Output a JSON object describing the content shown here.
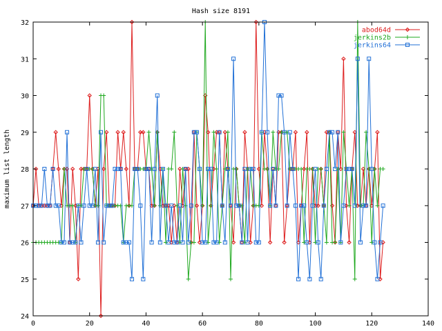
{
  "colors": {
    "abod64d": "#dd1b1b",
    "jerkins2b": "#1ea81e",
    "jerkins64": "#1f6fd6",
    "axes": "#000000",
    "background": "#ffffff"
  },
  "chart_data": {
    "type": "line",
    "title": "Hash size 8191",
    "xlabel": "",
    "ylabel": "maximum list length",
    "xlim": [
      0,
      140
    ],
    "ylim": [
      24,
      32
    ],
    "x_ticks": [
      0,
      20,
      40,
      60,
      80,
      100,
      120,
      140
    ],
    "y_ticks": [
      24,
      25,
      26,
      27,
      28,
      29,
      30,
      31,
      32
    ],
    "grid": false,
    "legend_position": "top-right",
    "series": [
      {
        "name": "abod64d",
        "marker": "diamond",
        "values": [
          27,
          28,
          27,
          27,
          27,
          27,
          27,
          28,
          29,
          28,
          27,
          28,
          28,
          26,
          28,
          27,
          25,
          28,
          28,
          28,
          30,
          28,
          27,
          28,
          24,
          28,
          29,
          27,
          27,
          27,
          29,
          28,
          29,
          28,
          27,
          32,
          28,
          28,
          29,
          29,
          28,
          28,
          27,
          27,
          29,
          28,
          27,
          27,
          27,
          26,
          27,
          26,
          28,
          27,
          28,
          28,
          26,
          29,
          27,
          26,
          27,
          30,
          29,
          27,
          28,
          29,
          29,
          27,
          29,
          28,
          27,
          26,
          28,
          27,
          26,
          29,
          28,
          26,
          27,
          32,
          28,
          27,
          29,
          28,
          26,
          28,
          27,
          29,
          29,
          26,
          27,
          28,
          28,
          29,
          26,
          27,
          28,
          29,
          26,
          28,
          27,
          27,
          28,
          27,
          29,
          29,
          27,
          26,
          29,
          28,
          31,
          27,
          26,
          28,
          29,
          27,
          27,
          28,
          27,
          28,
          27,
          28,
          29,
          25,
          26
        ]
      },
      {
        "name": "jerkins2b",
        "marker": "plus",
        "values": [
          26,
          26,
          26,
          26,
          26,
          26,
          26,
          26,
          26,
          26,
          26,
          28,
          27,
          27,
          27,
          26,
          27,
          27,
          28,
          28,
          28,
          28,
          27,
          27,
          30,
          30,
          27,
          27,
          27,
          27,
          27,
          27,
          26,
          27,
          27,
          27,
          28,
          28,
          28,
          28,
          28,
          29,
          28,
          27,
          29,
          27,
          28,
          26,
          28,
          28,
          29,
          27,
          26,
          28,
          27,
          25,
          26,
          26,
          29,
          28,
          27,
          32,
          26,
          27,
          29,
          28,
          26,
          27,
          28,
          29,
          25,
          28,
          28,
          27,
          27,
          26,
          28,
          28,
          27,
          27,
          27,
          29,
          28,
          28,
          27,
          29,
          28,
          28,
          29,
          29,
          29,
          28,
          28,
          28,
          28,
          28,
          26,
          28,
          28,
          28,
          26,
          28,
          28,
          27,
          26,
          29,
          26,
          26,
          28,
          26,
          29,
          28,
          27,
          28,
          25,
          32,
          27,
          27,
          29,
          28,
          26,
          28,
          27,
          28,
          28
        ]
      },
      {
        "name": "jerkins64",
        "marker": "square",
        "values": [
          27,
          27,
          27,
          27,
          28,
          27,
          27,
          28,
          27,
          27,
          26,
          26,
          29,
          26,
          26,
          26,
          27,
          26,
          27,
          28,
          27,
          27,
          28,
          26,
          29,
          26,
          27,
          27,
          27,
          28,
          28,
          28,
          26,
          26,
          26,
          25,
          28,
          28,
          27,
          25,
          28,
          28,
          26,
          28,
          30,
          26,
          28,
          27,
          26,
          27,
          26,
          26,
          27,
          26,
          28,
          26,
          27,
          29,
          29,
          28,
          26,
          26,
          28,
          28,
          26,
          26,
          29,
          27,
          26,
          28,
          27,
          31,
          27,
          27,
          26,
          28,
          26,
          28,
          28,
          26,
          26,
          29,
          32,
          29,
          27,
          28,
          27,
          30,
          30,
          29,
          27,
          29,
          28,
          27,
          25,
          27,
          27,
          26,
          25,
          27,
          28,
          26,
          25,
          27,
          28,
          29,
          29,
          28,
          29,
          26,
          27,
          28,
          28,
          28,
          27,
          31,
          26,
          27,
          27,
          31,
          28,
          26,
          25,
          26,
          27
        ]
      }
    ]
  }
}
